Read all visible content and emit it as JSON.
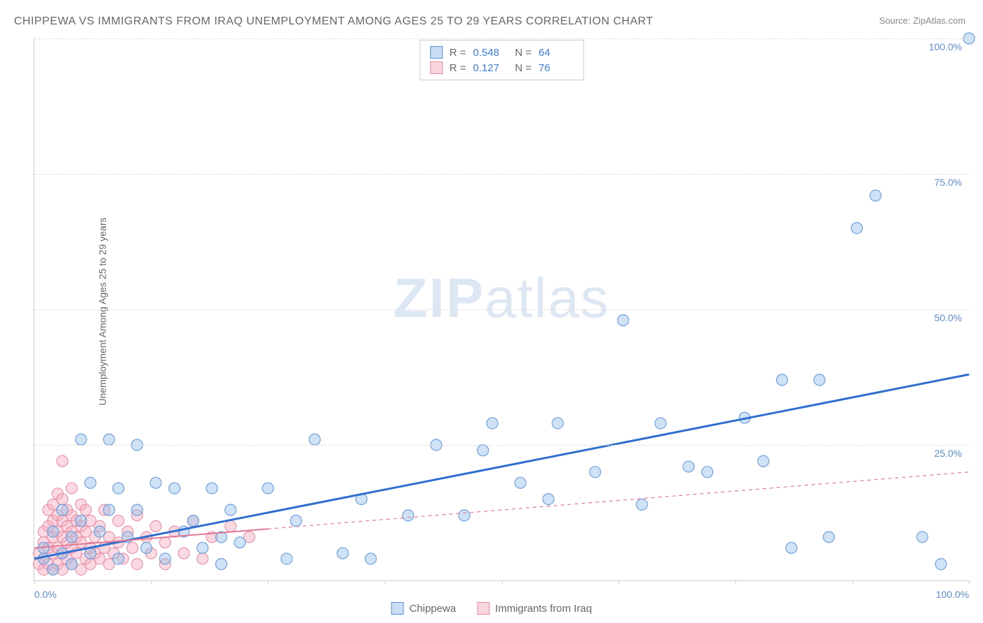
{
  "title": "CHIPPEWA VS IMMIGRANTS FROM IRAQ UNEMPLOYMENT AMONG AGES 25 TO 29 YEARS CORRELATION CHART",
  "source_prefix": "Source: ",
  "source_name": "ZipAtlas.com",
  "y_axis_label": "Unemployment Among Ages 25 to 29 years",
  "watermark_bold": "ZIP",
  "watermark_light": "atlas",
  "chart": {
    "type": "scatter",
    "xlim": [
      0,
      100
    ],
    "ylim": [
      0,
      100
    ],
    "x_ticks": [
      0,
      12.5,
      25,
      37.5,
      50,
      62.5,
      75,
      87.5,
      100
    ],
    "x_tick_labels": {
      "0": "0.0%",
      "100": "100.0%"
    },
    "y_ticks": [
      25,
      50,
      75,
      100
    ],
    "y_tick_labels": {
      "25": "25.0%",
      "50": "50.0%",
      "75": "75.0%",
      "100": "100.0%"
    },
    "grid_color": "#dddddd",
    "background_color": "#ffffff",
    "axis_color": "#cccccc"
  },
  "series": [
    {
      "name": "Chippewa",
      "marker_color_fill": "rgba(150,190,235,0.45)",
      "marker_color_stroke": "#6fa0dd",
      "marker_radius": 8,
      "trend_color": "#2f6fd0",
      "trend_width": 3,
      "trend_dash": "none",
      "trend_start": [
        0,
        4
      ],
      "trend_end": [
        100,
        38
      ],
      "R_label": "R =",
      "R": "0.548",
      "N_label": "N =",
      "N": "64",
      "points": [
        [
          1,
          4
        ],
        [
          1,
          6
        ],
        [
          2,
          2
        ],
        [
          2,
          9
        ],
        [
          3,
          5
        ],
        [
          3,
          13
        ],
        [
          4,
          3
        ],
        [
          4,
          8
        ],
        [
          5,
          26
        ],
        [
          5,
          11
        ],
        [
          6,
          5
        ],
        [
          6,
          18
        ],
        [
          7,
          9
        ],
        [
          8,
          13
        ],
        [
          8,
          26
        ],
        [
          9,
          4
        ],
        [
          9,
          17
        ],
        [
          10,
          8
        ],
        [
          11,
          13
        ],
        [
          11,
          25
        ],
        [
          12,
          6
        ],
        [
          13,
          18
        ],
        [
          14,
          4
        ],
        [
          15,
          17
        ],
        [
          16,
          9
        ],
        [
          17,
          11
        ],
        [
          18,
          6
        ],
        [
          19,
          17
        ],
        [
          20,
          3
        ],
        [
          20,
          8
        ],
        [
          21,
          13
        ],
        [
          22,
          7
        ],
        [
          25,
          17
        ],
        [
          27,
          4
        ],
        [
          28,
          11
        ],
        [
          30,
          26
        ],
        [
          33,
          5
        ],
        [
          35,
          15
        ],
        [
          36,
          4
        ],
        [
          40,
          12
        ],
        [
          43,
          25
        ],
        [
          46,
          12
        ],
        [
          48,
          24
        ],
        [
          49,
          29
        ],
        [
          52,
          18
        ],
        [
          55,
          15
        ],
        [
          56,
          29
        ],
        [
          60,
          20
        ],
        [
          63,
          48
        ],
        [
          65,
          14
        ],
        [
          67,
          29
        ],
        [
          70,
          21
        ],
        [
          72,
          20
        ],
        [
          76,
          30
        ],
        [
          78,
          22
        ],
        [
          80,
          37
        ],
        [
          81,
          6
        ],
        [
          84,
          37
        ],
        [
          85,
          8
        ],
        [
          88,
          65
        ],
        [
          90,
          71
        ],
        [
          95,
          8
        ],
        [
          97,
          3
        ],
        [
          100,
          100
        ]
      ]
    },
    {
      "name": "Immigrants from Iraq",
      "marker_color_fill": "rgba(245,170,190,0.45)",
      "marker_color_stroke": "#e895ab",
      "marker_radius": 8,
      "trend_color": "#e07a94",
      "trend_width": 2,
      "trend_solid_until": 25,
      "trend_dash": "5,5",
      "trend_start": [
        0,
        6
      ],
      "trend_end": [
        100,
        20
      ],
      "R_label": "R =",
      "R": "0.127",
      "N_label": "N =",
      "N": "76",
      "points": [
        [
          0.5,
          3
        ],
        [
          0.5,
          5
        ],
        [
          1,
          2
        ],
        [
          1,
          4
        ],
        [
          1,
          7
        ],
        [
          1,
          9
        ],
        [
          1.5,
          3
        ],
        [
          1.5,
          6
        ],
        [
          1.5,
          10
        ],
        [
          1.5,
          13
        ],
        [
          2,
          2
        ],
        [
          2,
          5
        ],
        [
          2,
          8
        ],
        [
          2,
          11
        ],
        [
          2,
          14
        ],
        [
          2.5,
          3
        ],
        [
          2.5,
          6
        ],
        [
          2.5,
          9
        ],
        [
          2.5,
          12
        ],
        [
          2.5,
          16
        ],
        [
          3,
          2
        ],
        [
          3,
          5
        ],
        [
          3,
          8
        ],
        [
          3,
          11
        ],
        [
          3,
          15
        ],
        [
          3,
          22
        ],
        [
          3.5,
          4
        ],
        [
          3.5,
          7
        ],
        [
          3.5,
          10
        ],
        [
          3.5,
          13
        ],
        [
          4,
          3
        ],
        [
          4,
          6
        ],
        [
          4,
          9
        ],
        [
          4,
          12
        ],
        [
          4,
          17
        ],
        [
          4.5,
          5
        ],
        [
          4.5,
          8
        ],
        [
          4.5,
          11
        ],
        [
          5,
          2
        ],
        [
          5,
          7
        ],
        [
          5,
          10
        ],
        [
          5,
          14
        ],
        [
          5.5,
          4
        ],
        [
          5.5,
          9
        ],
        [
          5.5,
          13
        ],
        [
          6,
          3
        ],
        [
          6,
          6
        ],
        [
          6,
          11
        ],
        [
          6.5,
          5
        ],
        [
          6.5,
          8
        ],
        [
          7,
          4
        ],
        [
          7,
          10
        ],
        [
          7.5,
          6
        ],
        [
          7.5,
          13
        ],
        [
          8,
          3
        ],
        [
          8,
          8
        ],
        [
          8.5,
          5
        ],
        [
          9,
          7
        ],
        [
          9,
          11
        ],
        [
          9.5,
          4
        ],
        [
          10,
          9
        ],
        [
          10.5,
          6
        ],
        [
          11,
          12
        ],
        [
          11,
          3
        ],
        [
          12,
          8
        ],
        [
          12.5,
          5
        ],
        [
          13,
          10
        ],
        [
          14,
          7
        ],
        [
          14,
          3
        ],
        [
          15,
          9
        ],
        [
          16,
          5
        ],
        [
          17,
          11
        ],
        [
          18,
          4
        ],
        [
          19,
          8
        ],
        [
          21,
          10
        ],
        [
          23,
          8
        ]
      ]
    }
  ],
  "legend": {
    "items": [
      {
        "swatch": "blue",
        "label": "Chippewa"
      },
      {
        "swatch": "pink",
        "label": "Immigrants from Iraq"
      }
    ]
  }
}
